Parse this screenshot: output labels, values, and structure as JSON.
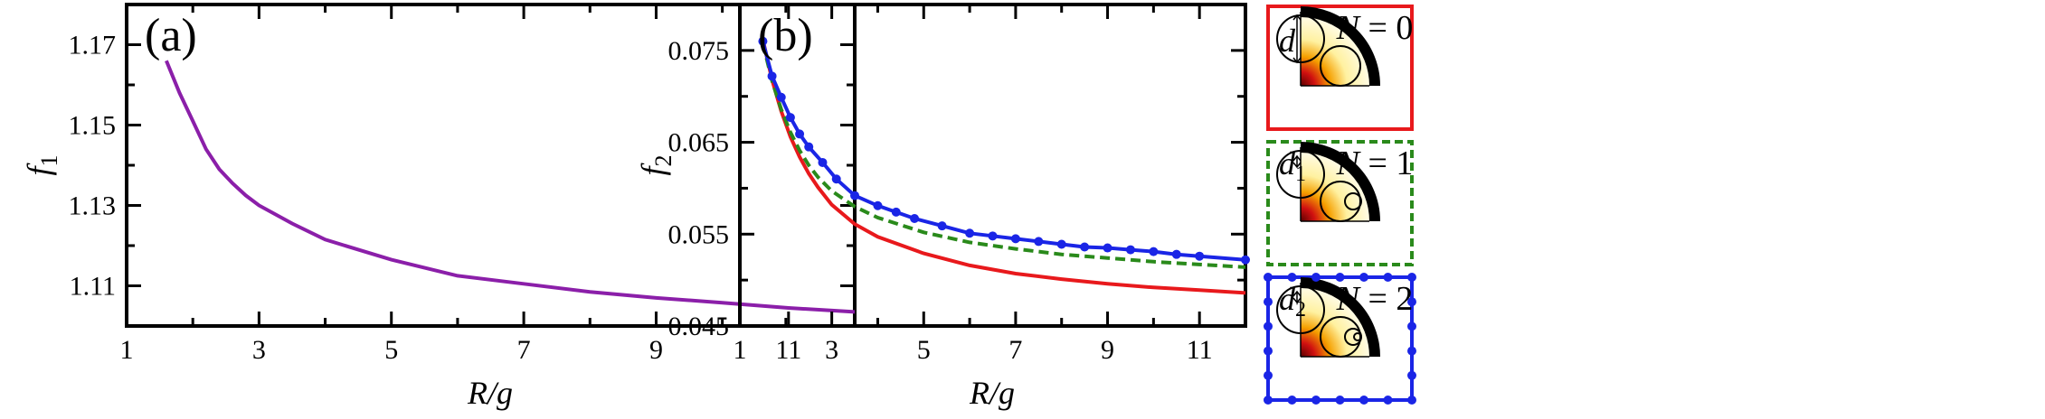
{
  "chart_data": [
    {
      "type": "line",
      "panel_label": "(a)",
      "xlabel_italic": "R",
      "xlabel_rest": "/g",
      "ylabel_italic": "f",
      "ylabel_sub": "1",
      "xlim": [
        1,
        12
      ],
      "ylim": [
        1.1,
        1.18
      ],
      "xticks": [
        1,
        3,
        5,
        7,
        9,
        11
      ],
      "yticks": [
        1.11,
        1.13,
        1.15,
        1.17
      ],
      "ytick_labels": [
        "1.11",
        "1.13",
        "1.15",
        "1.17"
      ],
      "grid": false,
      "colors": {
        "line": "#8b1fa9"
      },
      "series": [
        {
          "x": [
            1.6,
            1.8,
            2.0,
            2.2,
            2.4,
            2.6,
            2.8,
            3.0,
            3.5,
            4.0,
            5.0,
            6.0,
            7.0,
            8.0,
            9.0,
            10.0,
            11.0,
            12.0
          ],
          "y": [
            1.166,
            1.158,
            1.151,
            1.144,
            1.139,
            1.1355,
            1.1325,
            1.13,
            1.1255,
            1.1215,
            1.1165,
            1.1125,
            1.1105,
            1.1085,
            1.107,
            1.1058,
            1.1045,
            1.1035
          ]
        }
      ]
    },
    {
      "type": "line",
      "panel_label": "(b)",
      "xlabel_italic": "R",
      "xlabel_rest": "/g",
      "ylabel_italic": "f",
      "ylabel_sub": "2",
      "xlim": [
        1,
        12
      ],
      "ylim": [
        0.045,
        0.08
      ],
      "xticks": [
        1,
        3,
        5,
        7,
        9,
        11
      ],
      "yticks": [
        0.045,
        0.055,
        0.065,
        0.075
      ],
      "ytick_labels": [
        "0.045",
        "0.055",
        "0.065",
        "0.075"
      ],
      "grid": false,
      "colors": {
        "n0": "#e8191c",
        "n1": "#2a8a1b",
        "n2": "#1a25e6"
      },
      "series": [
        {
          "key": "n0",
          "style": "solid",
          "x": [
            1.5,
            1.7,
            1.9,
            2.1,
            2.3,
            2.5,
            2.7,
            3.0,
            3.5,
            4.0,
            5.0,
            6.0,
            7.0,
            8.0,
            9.0,
            10.0,
            11.0,
            12.0
          ],
          "y": [
            0.0762,
            0.0718,
            0.0684,
            0.0656,
            0.0634,
            0.0616,
            0.0601,
            0.0582,
            0.0561,
            0.0547,
            0.0529,
            0.0516,
            0.0507,
            0.0501,
            0.0496,
            0.0492,
            0.0489,
            0.0486
          ]
        },
        {
          "key": "n1",
          "style": "dashed",
          "x": [
            1.5,
            1.7,
            1.9,
            2.1,
            2.3,
            2.5,
            2.7,
            3.0,
            3.5,
            4.0,
            5.0,
            6.0,
            7.0,
            8.0,
            9.0,
            10.0,
            11.0,
            12.0
          ],
          "y": [
            0.0758,
            0.0717,
            0.0686,
            0.0661,
            0.0641,
            0.0625,
            0.0612,
            0.0597,
            0.058,
            0.0568,
            0.0552,
            0.0541,
            0.0534,
            0.0528,
            0.0524,
            0.052,
            0.0517,
            0.0514
          ]
        },
        {
          "key": "n2",
          "style": "solid-markers",
          "x": [
            1.5,
            1.7,
            1.9,
            2.1,
            2.3,
            2.5,
            2.8,
            3.1,
            3.5,
            4.0,
            4.4,
            4.8,
            5.4,
            6.0,
            6.5,
            7.0,
            7.5,
            8.0,
            8.5,
            9.0,
            9.5,
            10.0,
            10.5,
            11.0,
            12.0
          ],
          "y": [
            0.076,
            0.0722,
            0.0699,
            0.0677,
            0.0659,
            0.0645,
            0.0628,
            0.061,
            0.0592,
            0.0581,
            0.0574,
            0.0567,
            0.0559,
            0.0551,
            0.0548,
            0.0545,
            0.0542,
            0.0539,
            0.0536,
            0.0535,
            0.0533,
            0.0531,
            0.0528,
            0.0526,
            0.0522
          ],
          "markers": [
            1.5,
            1.7,
            1.9,
            2.1,
            2.3,
            2.5,
            2.8,
            3.1,
            3.5,
            4.0,
            4.4,
            4.8,
            5.4,
            6.0,
            6.5,
            7.0,
            7.5,
            8.0,
            8.5,
            9.0,
            9.5,
            10.0,
            10.5,
            11.0,
            12.0
          ]
        }
      ]
    }
  ],
  "insets": [
    {
      "n_label_italic": "N",
      "n_label_rest": " = 0",
      "d_label": "d",
      "d_sub": "",
      "border": "#e8191c",
      "style": "solid"
    },
    {
      "n_label_italic": "N",
      "n_label_rest": " = 1",
      "d_label": "d",
      "d_sub": "1",
      "border": "#2a8a1b",
      "style": "dashed"
    },
    {
      "n_label_italic": "N",
      "n_label_rest": " = 2",
      "d_label": "d",
      "d_sub": "2",
      "border": "#1a25e6",
      "style": "dotted-markers"
    }
  ]
}
